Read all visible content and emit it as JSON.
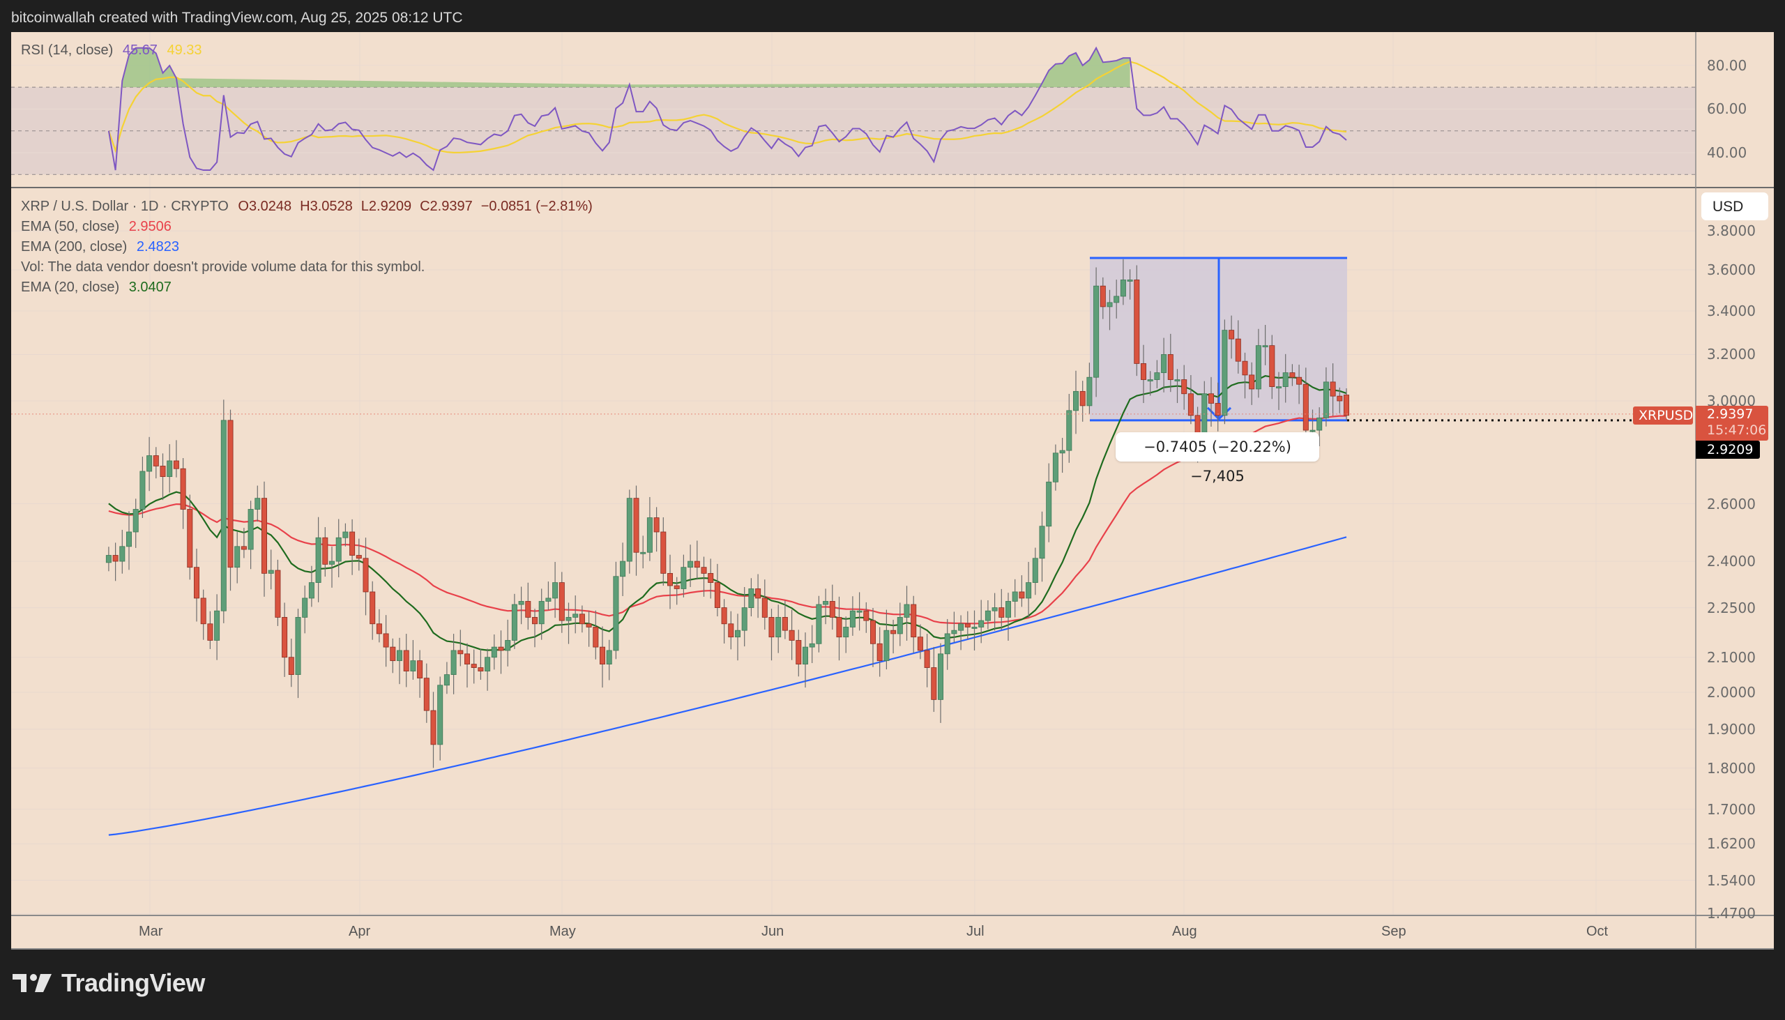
{
  "header": {
    "attribution": "bitcoinwallah created with TradingView.com, Aug 25, 2025 08:12 UTC"
  },
  "rsi_pane": {
    "label": "RSI (14, close)",
    "rsi_value": "45.67",
    "rsi_ma_value": "49.33",
    "axis_ticks": [
      "80.00",
      "60.00",
      "40.00"
    ],
    "colors": {
      "rsi": "#7e57c2",
      "ma": "#f5d234",
      "band": "#e3d2cd"
    }
  },
  "price_pane": {
    "symbol_line": "XRP / U.S. Dollar · 1D · CRYPTO",
    "ohlc": {
      "open": "O3.0248",
      "high": "H3.0528",
      "low": "L2.9209",
      "close": "C2.9397",
      "change": "−0.0851 (−2.81%)"
    },
    "indicators": [
      {
        "label": "EMA (50, close)",
        "value": "2.9506",
        "color": "#e8414a"
      },
      {
        "label": "EMA (200, close)",
        "value": "2.4823",
        "color": "#2962ff"
      },
      {
        "label": "Vol: The data vendor doesn't provide volume data for this symbol.",
        "value": "",
        "color": "#555555"
      },
      {
        "label": "EMA (20, close)",
        "value": "3.0407",
        "color": "#1e6b1e"
      }
    ],
    "currency_button": "USD",
    "axis_ticks": [
      "3.8000",
      "3.6000",
      "3.4000",
      "3.2000",
      "3.0000",
      "2.6000",
      "2.4000",
      "2.2500",
      "2.1000",
      "2.0000",
      "1.9000",
      "1.8000",
      "1.7000",
      "1.6200",
      "1.5400",
      "1.4700"
    ],
    "last_price_tag": {
      "symbol": "XRPUSD",
      "price": "2.9397",
      "countdown": "15:47:06",
      "color": "#d9533f"
    },
    "low_tag": "2.9209",
    "measure_label": "−0.7405 (−20.22%) −7,405"
  },
  "time_axis": {
    "months": [
      "Mar",
      "Apr",
      "May",
      "Jun",
      "Jul",
      "Aug",
      "Sep",
      "Oct"
    ]
  },
  "footer": {
    "logo_text": "TradingView"
  },
  "chart_data": {
    "type": "candlestick",
    "title": "XRP / U.S. Dollar · 1D · CRYPTO",
    "xlabel": "",
    "ylabel": "USD",
    "y_scale": "log",
    "ylim": [
      1.47,
      3.85
    ],
    "x_range": [
      "2025-02-08",
      "2025-10-20"
    ],
    "last_bar": {
      "date": "2025-08-25",
      "open": 3.0248,
      "high": 3.0528,
      "low": 2.9209,
      "close": 2.9397
    },
    "candles_note": "approximate daily OHLC from Feb 8 to Aug 25, 2025",
    "closes": [
      2.42,
      2.4,
      2.45,
      2.5,
      2.58,
      2.72,
      2.78,
      2.74,
      2.7,
      2.76,
      2.73,
      2.58,
      2.38,
      2.28,
      2.2,
      2.15,
      2.24,
      2.92,
      2.38,
      2.45,
      2.44,
      2.58,
      2.62,
      2.36,
      2.37,
      2.22,
      2.1,
      2.05,
      2.22,
      2.28,
      2.33,
      2.48,
      2.39,
      2.4,
      2.48,
      2.5,
      2.42,
      2.41,
      2.3,
      2.2,
      2.17,
      2.13,
      2.09,
      2.12,
      2.06,
      2.09,
      2.04,
      1.95,
      1.86,
      2.02,
      2.05,
      2.12,
      2.11,
      2.08,
      2.07,
      2.06,
      2.1,
      2.13,
      2.12,
      2.15,
      2.26,
      2.27,
      2.22,
      2.2,
      2.27,
      2.28,
      2.33,
      2.21,
      2.22,
      2.23,
      2.2,
      2.19,
      2.13,
      2.08,
      2.12,
      2.35,
      2.4,
      2.62,
      2.43,
      2.43,
      2.55,
      2.5,
      2.36,
      2.32,
      2.31,
      2.38,
      2.4,
      2.38,
      2.36,
      2.33,
      2.25,
      2.2,
      2.16,
      2.18,
      2.25,
      2.31,
      2.28,
      2.22,
      2.16,
      2.22,
      2.18,
      2.15,
      2.08,
      2.13,
      2.14,
      2.26,
      2.27,
      2.22,
      2.16,
      2.19,
      2.24,
      2.24,
      2.21,
      2.14,
      2.09,
      2.18,
      2.17,
      2.22,
      2.26,
      2.16,
      2.12,
      2.07,
      1.98,
      2.11,
      2.17,
      2.18,
      2.2,
      2.19,
      2.19,
      2.21,
      2.24,
      2.25,
      2.22,
      2.27,
      2.3,
      2.28,
      2.33,
      2.41,
      2.52,
      2.68,
      2.79,
      2.8,
      2.96,
      3.04,
      2.98,
      3.1,
      3.52,
      3.42,
      3.44,
      3.47,
      3.55,
      3.55,
      3.16,
      3.09,
      3.09,
      3.12,
      3.2,
      3.09,
      3.09,
      3.03,
      2.94,
      2.83,
      3.03,
      2.99,
      2.94,
      3.31,
      3.27,
      3.17,
      3.11,
      3.05,
      3.24,
      3.24,
      3.06,
      3.06,
      3.12,
      3.1,
      3.07,
      2.88,
      2.88,
      2.93,
      3.08,
      3.02,
      3.0,
      2.94
    ]
  }
}
